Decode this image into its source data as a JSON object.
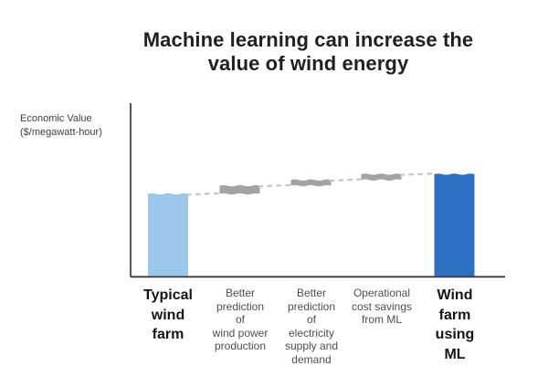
{
  "title": {
    "text": "Machine learning can increase the value of wind energy",
    "lines": [
      "Machine learning can increase the",
      "value of wind energy"
    ]
  },
  "y_axis": {
    "label": "Economic Value ($/megawatt-hour)",
    "label_lines": [
      "Economic Value",
      "($/megawatt-hour)"
    ]
  },
  "chart_data": {
    "type": "bar",
    "variant": "waterfall",
    "title": "Machine learning can increase the value of wind energy",
    "xlabel": "",
    "ylabel": "Economic Value ($/megawatt-hour)",
    "y_axis_numeric_scale": "none shown; relative values estimated from bar heights with Typical wind farm = 100",
    "grid": false,
    "legend": false,
    "categories": [
      {
        "label": "Typical wind farm",
        "lines": [
          "Typical",
          "wind",
          "farm"
        ],
        "role": "total",
        "value": 100,
        "color": "#9CC5EA",
        "emphasis": "bold"
      },
      {
        "label": "Better prediction of wind power production",
        "lines": [
          "Better",
          "prediction",
          "of",
          "wind power",
          "production"
        ],
        "role": "increment",
        "delta": 10,
        "color": "#A3A3A3",
        "emphasis": "normal"
      },
      {
        "label": "Better prediction of electricity supply and demand",
        "lines": [
          "Better",
          "prediction",
          "of",
          "electricity",
          "supply and",
          "demand"
        ],
        "role": "increment",
        "delta": 7,
        "color": "#A3A3A3",
        "emphasis": "normal"
      },
      {
        "label": "Operational cost savings from ML",
        "lines": [
          "Operational",
          "cost savings",
          "from ML"
        ],
        "role": "increment",
        "delta": 7,
        "color": "#A3A3A3",
        "emphasis": "normal"
      },
      {
        "label": "Wind farm using ML",
        "lines": [
          "Wind",
          "farm",
          "using",
          "ML"
        ],
        "role": "total",
        "value": 124,
        "color": "#2D70C4",
        "emphasis": "bold"
      }
    ],
    "style": {
      "connector_color": "#C4C4C4",
      "connector_style": "dashed",
      "axis_color": "#3A3A3A",
      "background": "#FFFFFF",
      "bar_edge_style": "hand-drawn wavy top edges"
    }
  }
}
